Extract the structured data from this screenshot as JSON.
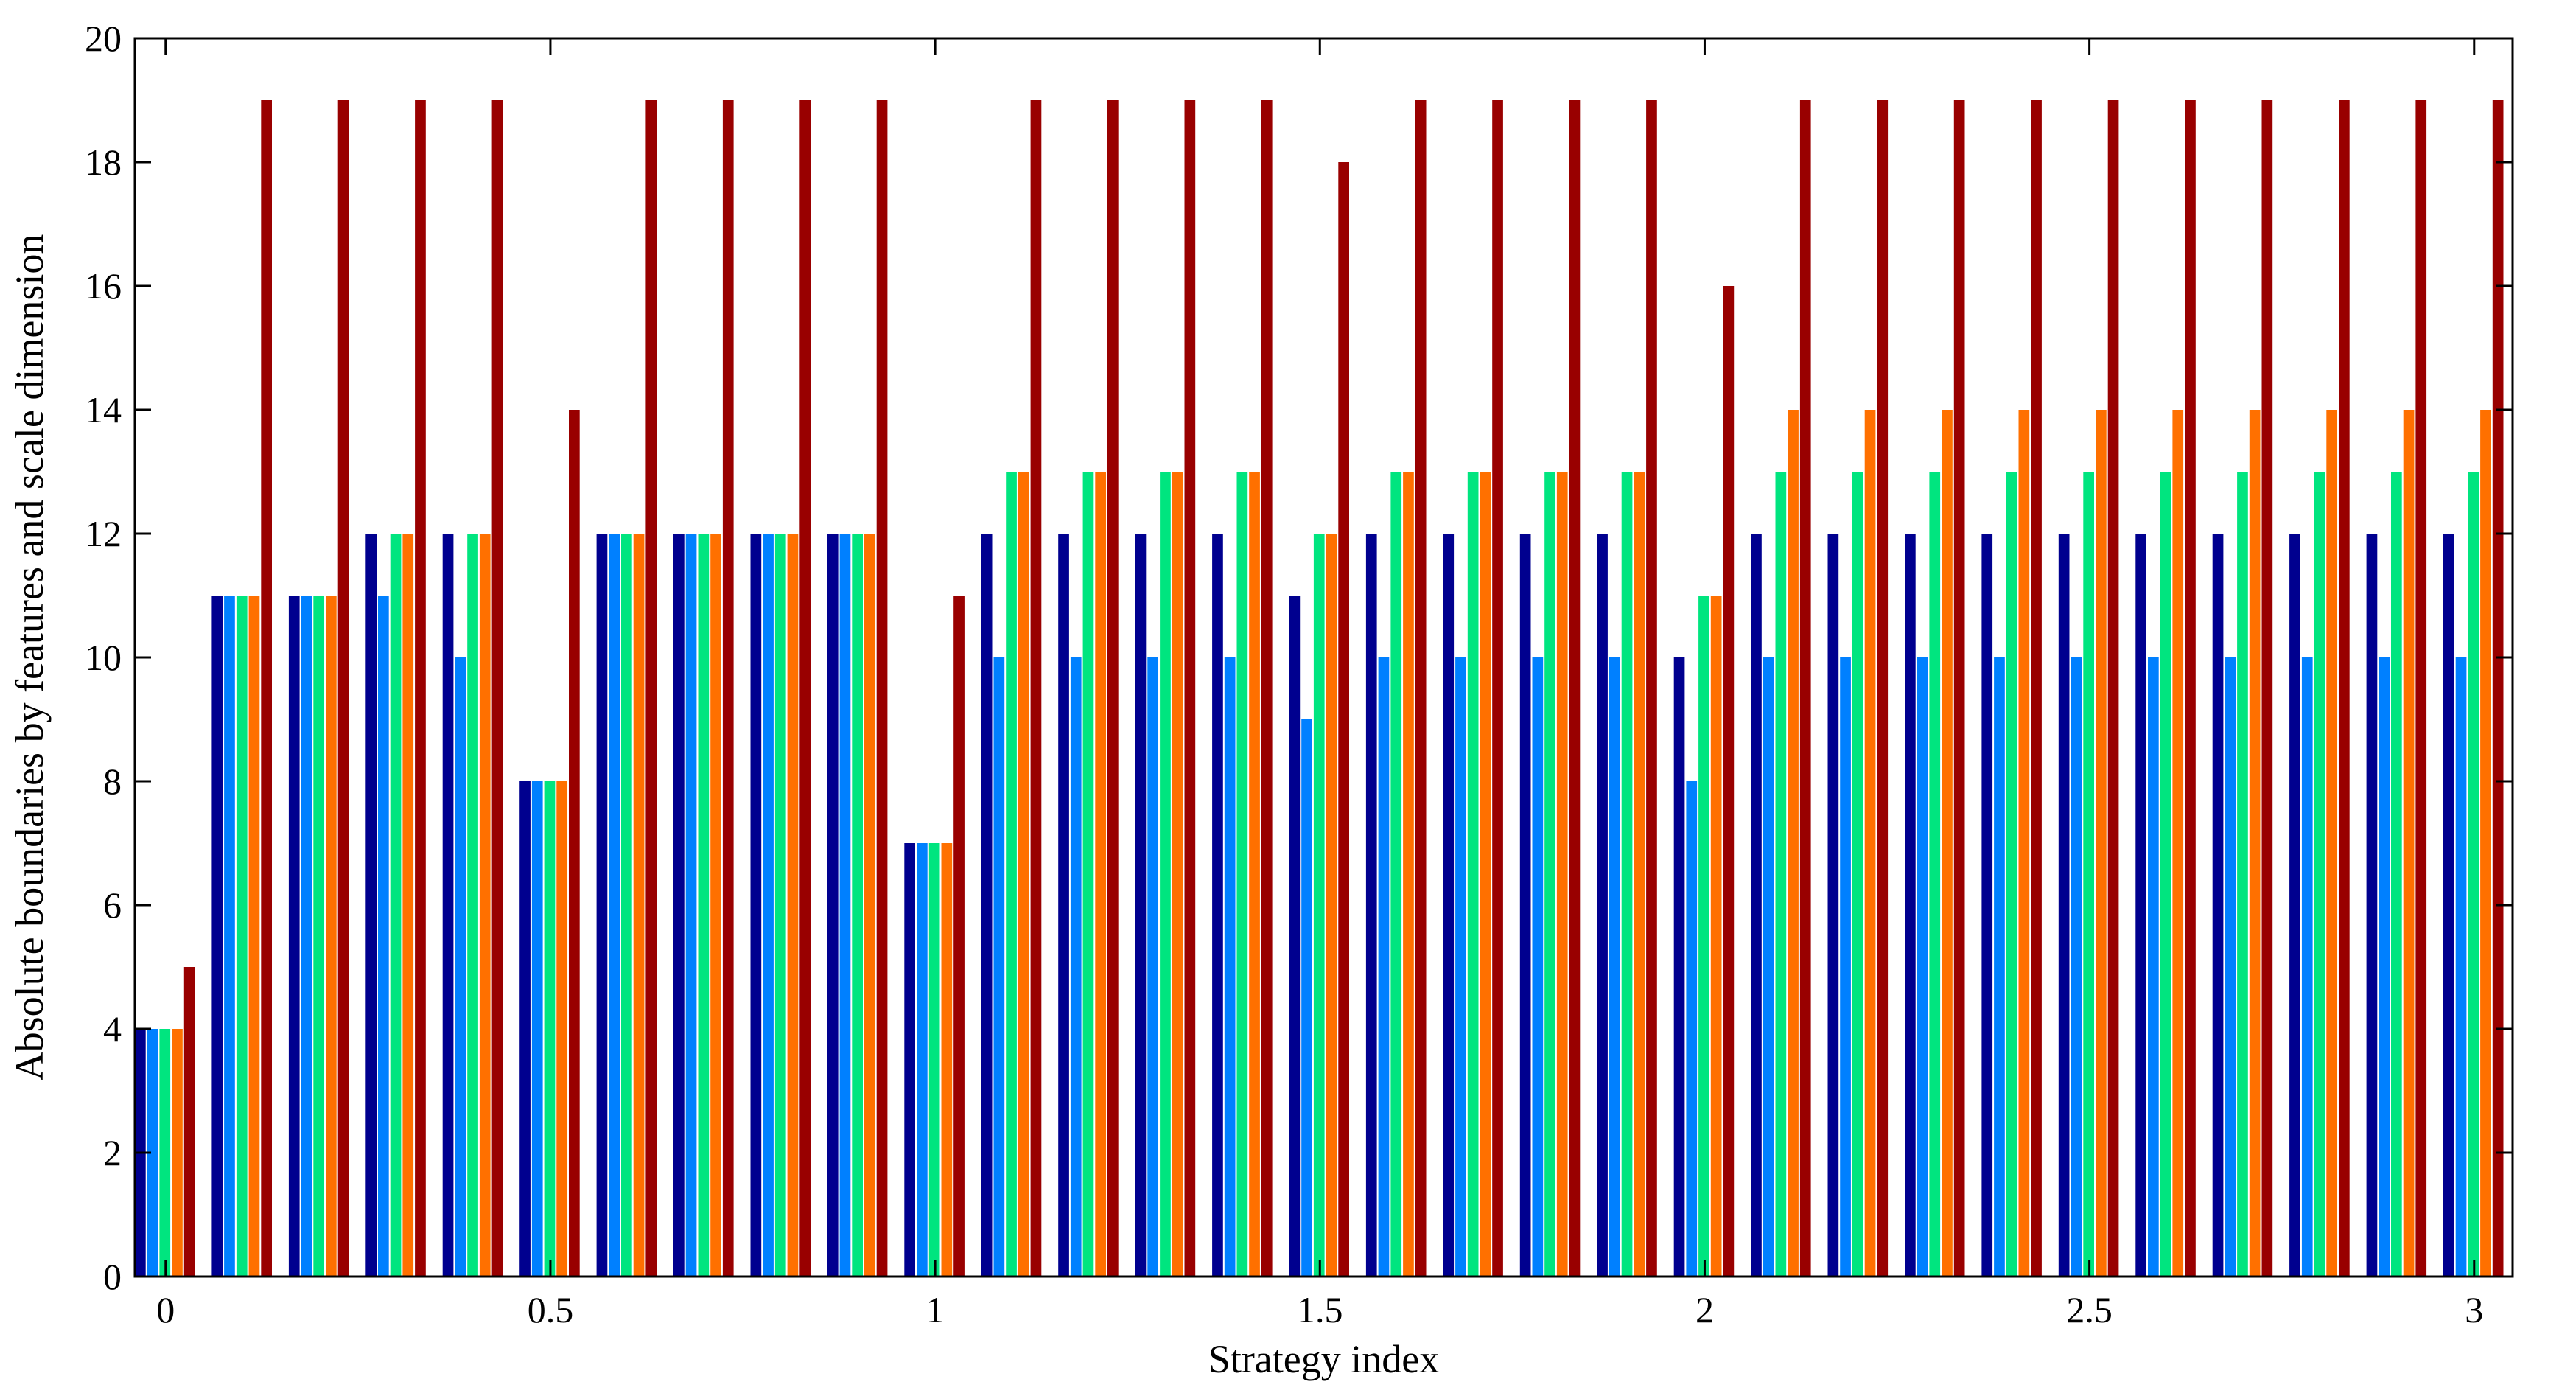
{
  "chart_data": {
    "type": "bar",
    "xlabel": "Strategy index",
    "ylabel": "Absolute boundaries by features and scale dimension",
    "xlim": [
      -0.04,
      3.05
    ],
    "ylim": [
      0,
      20
    ],
    "x_ticks": [
      0,
      0.5,
      1,
      1.5,
      2,
      2.5,
      3
    ],
    "x_tick_labels": [
      "0",
      "0.5",
      "1",
      "1.5",
      "2",
      "2.5",
      "3"
    ],
    "y_ticks": [
      0,
      2,
      4,
      6,
      8,
      10,
      12,
      14,
      16,
      18,
      20
    ],
    "y_tick_labels": [
      "0",
      "2",
      "4",
      "6",
      "8",
      "10",
      "12",
      "14",
      "16",
      "18",
      "20"
    ],
    "grid": false,
    "legend": "none",
    "x": [
      0,
      0.1,
      0.2,
      0.3,
      0.4,
      0.5,
      0.6,
      0.7,
      0.8,
      0.9,
      1.0,
      1.1,
      1.2,
      1.3,
      1.4,
      1.5,
      1.6,
      1.7,
      1.8,
      1.9,
      2.0,
      2.1,
      2.2,
      2.3,
      2.4,
      2.5,
      2.6,
      2.7,
      2.8,
      2.9,
      3.0
    ],
    "series": [
      {
        "color": "#00008f",
        "values": [
          4,
          11,
          11,
          12,
          12,
          8,
          12,
          12,
          12,
          12,
          7,
          12,
          12,
          12,
          12,
          11,
          12,
          12,
          12,
          12,
          10,
          12,
          12,
          12,
          12,
          12,
          12,
          12,
          12,
          12,
          12
        ]
      },
      {
        "color": "#0080ff",
        "values": [
          4,
          11,
          11,
          11,
          10,
          8,
          12,
          12,
          12,
          12,
          7,
          10,
          10,
          10,
          10,
          9,
          10,
          10,
          10,
          10,
          8,
          10,
          10,
          10,
          10,
          10,
          10,
          10,
          10,
          10,
          10
        ]
      },
      {
        "color": "#00e57f",
        "values": [
          4,
          11,
          11,
          12,
          12,
          8,
          12,
          12,
          12,
          12,
          7,
          13,
          13,
          13,
          13,
          12,
          13,
          13,
          13,
          13,
          11,
          13,
          13,
          13,
          13,
          13,
          13,
          13,
          13,
          13,
          13
        ]
      },
      {
        "color": "#ff7000",
        "values": [
          4,
          11,
          11,
          12,
          12,
          8,
          12,
          12,
          12,
          12,
          7,
          13,
          13,
          13,
          13,
          12,
          13,
          13,
          13,
          13,
          11,
          14,
          14,
          14,
          14,
          14,
          14,
          14,
          14,
          14,
          14
        ]
      },
      {
        "color": "#990000",
        "values": [
          5,
          19,
          19,
          19,
          19,
          14,
          19,
          19,
          19,
          19,
          11,
          19,
          19,
          19,
          19,
          18,
          19,
          19,
          19,
          19,
          16,
          19,
          19,
          19,
          19,
          19,
          19,
          19,
          19,
          19,
          19
        ]
      }
    ]
  }
}
